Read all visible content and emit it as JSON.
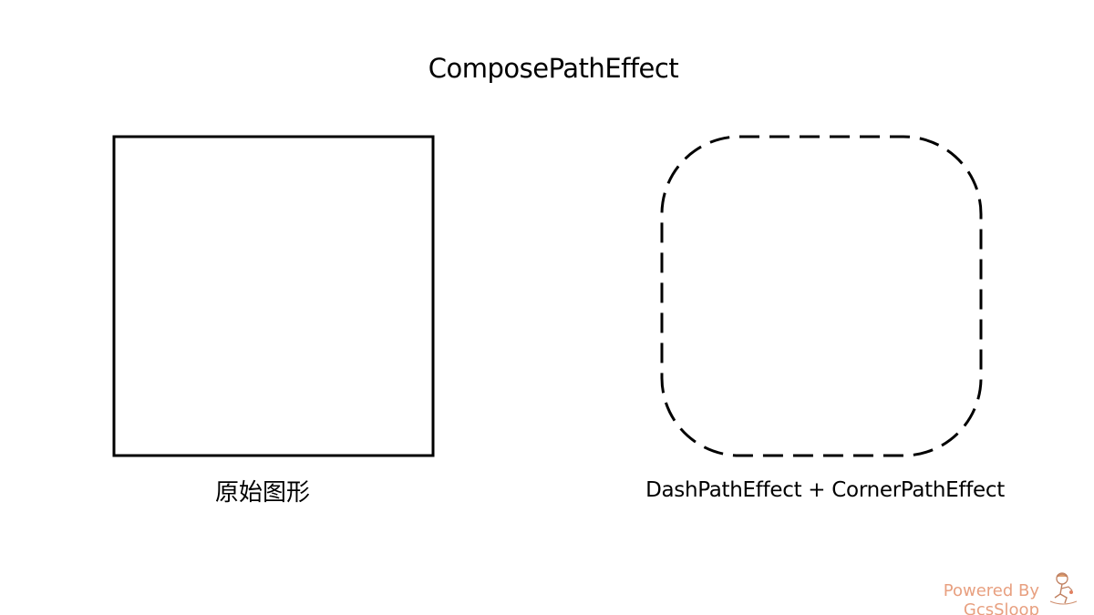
{
  "title": "ComposePathEffect",
  "original_caption": "原始图形",
  "effect_caption": "DashPathEffect + CornerPathEffect",
  "footer_text": "Powered By GcsSloop",
  "colors": {
    "stroke": "#000000",
    "background": "#ffffff",
    "footer": "#e8a080"
  },
  "icons": {
    "mascot": "mascot-icon"
  }
}
